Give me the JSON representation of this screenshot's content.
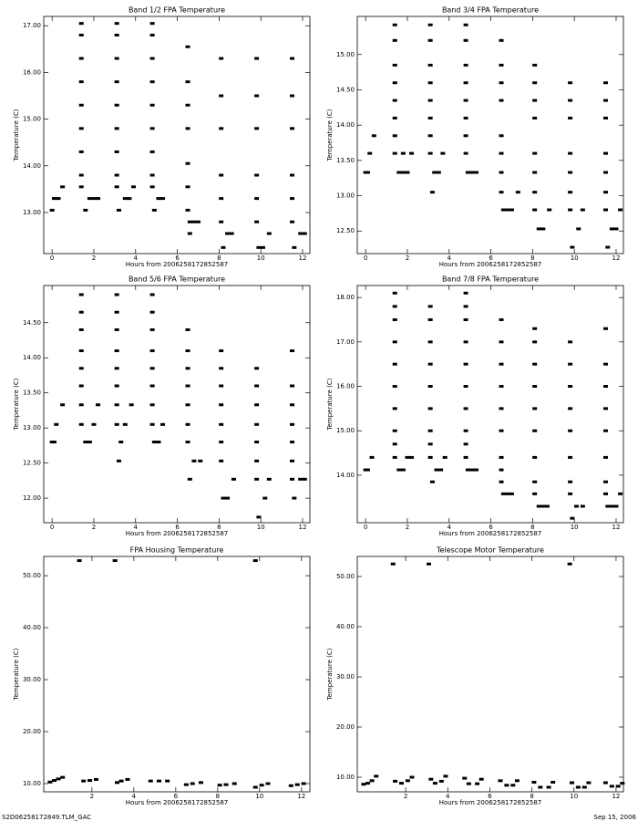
{
  "chart_data": [
    {
      "type": "scatter",
      "title": "Band 1/2 FPA Temperature",
      "x_label": "Hours from 2006258172852587",
      "y_label": "Temperature (C)",
      "color": "#000000",
      "xlim": [
        -0.4,
        12.35
      ],
      "xticks": [
        0,
        2,
        4,
        6,
        8,
        10,
        12
      ],
      "ylim": [
        12.12,
        17.2
      ],
      "yticks": [
        {
          "value": 13,
          "label": "13.00"
        },
        {
          "value": 14,
          "label": "14.00"
        },
        {
          "value": 15,
          "label": "15.00"
        },
        {
          "value": 16,
          "label": "16.00"
        },
        {
          "value": 17,
          "label": "17.00"
        }
      ],
      "x": [
        0,
        0.1,
        0.3,
        0.5,
        1.4,
        1.4,
        1.4,
        1.4,
        1.4,
        1.4,
        1.4,
        1.4,
        1.4,
        1.6,
        1.8,
        2.0,
        2.2,
        3.1,
        3.1,
        3.1,
        3.1,
        3.1,
        3.1,
        3.1,
        3.1,
        3.1,
        3.2,
        3.5,
        3.7,
        3.9,
        4.8,
        4.8,
        4.8,
        4.8,
        4.8,
        4.8,
        4.8,
        4.8,
        4.8,
        4.9,
        5.1,
        5.3,
        6.5,
        6.5,
        6.5,
        6.5,
        6.5,
        6.5,
        6.5,
        6.6,
        6.8,
        7.0,
        6.6,
        8.1,
        8.1,
        8.1,
        8.1,
        8.1,
        8.1,
        8.2,
        8.4,
        8.6,
        9.8,
        9.8,
        9.8,
        9.8,
        9.8,
        9.8,
        9.9,
        10.1,
        10.4,
        11.5,
        11.5,
        11.5,
        11.5,
        11.5,
        11.5,
        11.6,
        11.9,
        12.1
      ],
      "values": [
        13.05,
        13.3,
        13.3,
        13.55,
        13.55,
        13.8,
        14.3,
        14.8,
        15.3,
        15.8,
        16.3,
        16.8,
        17.05,
        13.05,
        13.3,
        13.3,
        13.3,
        13.55,
        13.8,
        14.3,
        14.8,
        15.3,
        15.8,
        16.3,
        16.8,
        17.05,
        13.05,
        13.3,
        13.3,
        13.55,
        13.55,
        13.8,
        14.3,
        14.8,
        15.3,
        15.8,
        16.3,
        16.8,
        17.05,
        13.05,
        13.3,
        13.3,
        13.05,
        13.55,
        14.05,
        14.8,
        15.3,
        15.8,
        16.55,
        12.8,
        12.8,
        12.8,
        12.55,
        12.8,
        13.3,
        13.8,
        14.8,
        15.5,
        16.3,
        12.25,
        12.55,
        12.55,
        12.8,
        13.3,
        13.8,
        14.8,
        15.5,
        16.3,
        12.25,
        12.25,
        12.55,
        12.8,
        13.3,
        13.8,
        14.8,
        15.5,
        16.3,
        12.25,
        12.55,
        12.55
      ]
    },
    {
      "type": "scatter",
      "title": "Band 3/4 FPA Temperature",
      "x_label": "Hours from 2006258172852587",
      "y_label": "Temperature (C)",
      "color": "#000000",
      "xlim": [
        -0.4,
        12.35
      ],
      "xticks": [
        0,
        2,
        4,
        6,
        8,
        10,
        12
      ],
      "ylim": [
        12.18,
        15.54
      ],
      "yticks": [
        {
          "value": 12.5,
          "label": "12.50"
        },
        {
          "value": 13,
          "label": "13.00"
        },
        {
          "value": 13.5,
          "label": "13.50"
        },
        {
          "value": 14,
          "label": "14.00"
        },
        {
          "value": 14.5,
          "label": "14.50"
        },
        {
          "value": 15,
          "label": "15.00"
        }
      ],
      "x": [
        0,
        0.1,
        0.2,
        0.4,
        1.4,
        1.4,
        1.4,
        1.4,
        1.4,
        1.4,
        1.4,
        1.4,
        1.6,
        1.8,
        2.0,
        2.2,
        1.8,
        3.1,
        3.1,
        3.1,
        3.1,
        3.1,
        3.1,
        3.1,
        3.1,
        3.2,
        3.3,
        3.5,
        3.7,
        4.8,
        4.8,
        4.8,
        4.8,
        4.8,
        4.8,
        4.8,
        4.8,
        4.9,
        5.1,
        5.3,
        6.5,
        6.5,
        6.5,
        6.5,
        6.5,
        6.5,
        6.5,
        6.5,
        6.6,
        6.8,
        7.0,
        7.3,
        8.1,
        8.1,
        8.1,
        8.1,
        8.1,
        8.1,
        8.1,
        8.1,
        8.3,
        8.5,
        8.8,
        9.8,
        9.8,
        9.8,
        9.8,
        9.8,
        9.8,
        9.8,
        9.9,
        10.2,
        10.4,
        11.5,
        11.5,
        11.5,
        11.5,
        11.5,
        11.5,
        11.5,
        11.6,
        11.8,
        12.0,
        12.2
      ],
      "values": [
        13.33,
        13.33,
        13.6,
        13.85,
        13.6,
        13.85,
        14.1,
        14.35,
        14.6,
        14.85,
        15.2,
        15.42,
        13.33,
        13.33,
        13.33,
        13.6,
        13.6,
        13.6,
        13.85,
        14.1,
        14.35,
        14.6,
        14.85,
        15.2,
        15.42,
        13.05,
        13.33,
        13.33,
        13.6,
        13.6,
        13.85,
        14.1,
        14.35,
        14.6,
        14.85,
        15.2,
        15.42,
        13.33,
        13.33,
        13.33,
        13.05,
        13.33,
        13.6,
        13.85,
        14.35,
        14.6,
        14.85,
        15.2,
        12.8,
        12.8,
        12.8,
        13.05,
        12.8,
        13.05,
        13.33,
        13.6,
        14.1,
        14.35,
        14.6,
        14.85,
        12.53,
        12.53,
        12.8,
        12.8,
        13.05,
        13.33,
        13.6,
        14.1,
        14.35,
        14.6,
        12.27,
        12.53,
        12.8,
        12.8,
        13.05,
        13.33,
        13.6,
        14.1,
        14.35,
        14.6,
        12.27,
        12.53,
        12.53,
        12.8
      ]
    },
    {
      "type": "scatter",
      "title": "Band 5/6 FPA Temperature",
      "x_label": "Hours from 2006258172852587",
      "y_label": "Temperature (C)",
      "color": "#000000",
      "xlim": [
        -0.4,
        12.35
      ],
      "xticks": [
        0,
        2,
        4,
        6,
        8,
        10,
        12
      ],
      "ylim": [
        11.65,
        15.03
      ],
      "yticks": [
        {
          "value": 12,
          "label": "12.00"
        },
        {
          "value": 12.5,
          "label": "12.50"
        },
        {
          "value": 13,
          "label": "13.00"
        },
        {
          "value": 13.5,
          "label": "13.50"
        },
        {
          "value": 14,
          "label": "14.00"
        },
        {
          "value": 14.5,
          "label": "14.50"
        }
      ],
      "x": [
        0,
        0.1,
        0.2,
        0.5,
        1.4,
        1.4,
        1.4,
        1.4,
        1.4,
        1.4,
        1.4,
        1.4,
        1.6,
        1.8,
        2.0,
        2.2,
        3.1,
        3.1,
        3.1,
        3.1,
        3.1,
        3.1,
        3.1,
        3.1,
        3.2,
        3.3,
        3.5,
        3.8,
        4.8,
        4.8,
        4.8,
        4.8,
        4.8,
        4.8,
        4.8,
        4.8,
        4.9,
        5.1,
        5.3,
        6.5,
        6.5,
        6.5,
        6.5,
        6.5,
        6.5,
        6.5,
        6.6,
        6.8,
        7.1,
        8.1,
        8.1,
        8.1,
        8.1,
        8.1,
        8.1,
        8.1,
        8.2,
        8.4,
        8.7,
        9.8,
        9.8,
        9.8,
        9.8,
        9.8,
        9.8,
        9.8,
        9.9,
        10.2,
        10.4,
        11.5,
        11.5,
        11.5,
        11.5,
        11.5,
        11.5,
        11.5,
        11.6,
        11.9,
        12.1
      ],
      "values": [
        12.8,
        12.8,
        13.05,
        13.33,
        13.05,
        13.33,
        13.6,
        13.85,
        14.1,
        14.4,
        14.65,
        14.9,
        12.8,
        12.8,
        13.05,
        13.33,
        13.05,
        13.33,
        13.6,
        13.85,
        14.1,
        14.4,
        14.65,
        14.9,
        12.53,
        12.8,
        13.05,
        13.33,
        13.05,
        13.33,
        13.6,
        13.85,
        14.1,
        14.4,
        14.65,
        14.9,
        12.8,
        12.8,
        13.05,
        12.8,
        13.05,
        13.33,
        13.6,
        13.85,
        14.1,
        14.4,
        12.27,
        12.53,
        12.53,
        12.53,
        12.8,
        13.05,
        13.33,
        13.6,
        13.85,
        14.1,
        12.0,
        12.0,
        12.27,
        12.27,
        12.53,
        12.8,
        13.05,
        13.33,
        13.6,
        13.85,
        11.73,
        12.0,
        12.27,
        12.27,
        12.53,
        12.8,
        13.05,
        13.33,
        13.6,
        14.1,
        12.0,
        12.27,
        12.27
      ]
    },
    {
      "type": "scatter",
      "title": "Band 7/8 FPA Temperature",
      "x_label": "Hours from 2006258172852587",
      "y_label": "Temperature (C)",
      "color": "#000000",
      "xlim": [
        -0.4,
        12.35
      ],
      "xticks": [
        0,
        2,
        4,
        6,
        8,
        10,
        12
      ],
      "ylim": [
        12.93,
        18.27
      ],
      "yticks": [
        {
          "value": 14,
          "label": "14.00"
        },
        {
          "value": 15,
          "label": "15.00"
        },
        {
          "value": 16,
          "label": "16.00"
        },
        {
          "value": 17,
          "label": "17.00"
        },
        {
          "value": 18,
          "label": "18.00"
        }
      ],
      "x": [
        0,
        0.1,
        0.3,
        1.4,
        1.4,
        1.4,
        1.4,
        1.4,
        1.4,
        1.4,
        1.4,
        1.4,
        1.4,
        1.6,
        1.8,
        2.0,
        2.2,
        3.1,
        3.1,
        3.1,
        3.1,
        3.1,
        3.1,
        3.1,
        3.1,
        3.1,
        3.2,
        3.4,
        3.6,
        3.8,
        4.8,
        4.8,
        4.8,
        4.8,
        4.8,
        4.8,
        4.8,
        4.8,
        4.8,
        4.8,
        4.9,
        5.1,
        5.3,
        6.5,
        6.5,
        6.5,
        6.5,
        6.5,
        6.5,
        6.5,
        6.5,
        6.5,
        6.6,
        6.8,
        7.0,
        8.1,
        8.1,
        8.1,
        8.1,
        8.1,
        8.1,
        8.1,
        8.1,
        8.1,
        8.3,
        8.5,
        8.7,
        9.8,
        9.8,
        9.8,
        9.8,
        9.8,
        9.8,
        9.8,
        9.8,
        9.9,
        10.1,
        10.4,
        11.5,
        11.5,
        11.5,
        11.5,
        11.5,
        11.5,
        11.5,
        11.5,
        11.6,
        11.8,
        12.0,
        12.2
      ],
      "values": [
        14.12,
        14.12,
        14.4,
        14.4,
        14.7,
        15.0,
        15.5,
        16.0,
        16.5,
        17.0,
        17.5,
        17.8,
        18.1,
        14.12,
        14.12,
        14.4,
        14.4,
        14.4,
        14.7,
        15.0,
        15.5,
        16.0,
        16.5,
        17.0,
        17.5,
        17.8,
        13.85,
        14.12,
        14.12,
        14.4,
        14.4,
        14.7,
        15.0,
        15.5,
        16.0,
        16.5,
        17.0,
        17.5,
        17.8,
        18.1,
        14.12,
        14.12,
        14.12,
        13.85,
        14.12,
        14.4,
        15.0,
        15.5,
        16.0,
        16.5,
        17.0,
        17.5,
        13.58,
        13.58,
        13.58,
        13.58,
        13.85,
        14.4,
        15.0,
        15.5,
        16.0,
        16.5,
        17.0,
        17.3,
        13.3,
        13.3,
        13.3,
        13.58,
        13.85,
        14.4,
        15.0,
        15.5,
        16.0,
        16.5,
        17.0,
        13.03,
        13.3,
        13.3,
        13.58,
        13.85,
        14.4,
        15.0,
        15.5,
        16.0,
        16.5,
        17.3,
        13.3,
        13.3,
        13.3,
        13.58
      ]
    },
    {
      "type": "scatter",
      "title": "FPA Housing Temperature",
      "x_label": "Hours from 2006258172852587",
      "y_label": "Temperature (C)",
      "color": "#000000",
      "xlim": [
        -0.3,
        12.4
      ],
      "xticks": [
        2,
        4,
        6,
        8,
        10,
        12
      ],
      "ylim": [
        8.42,
        53.7
      ],
      "yticks": [
        {
          "value": 10,
          "label": "10.00"
        },
        {
          "value": 20,
          "label": "20.00"
        },
        {
          "value": 30,
          "label": "30.00"
        },
        {
          "value": 40,
          "label": "40.00"
        },
        {
          "value": 50,
          "label": "50.00"
        }
      ],
      "x": [
        0,
        0.2,
        0.4,
        0.6,
        1.4,
        1.6,
        1.9,
        2.2,
        3.1,
        3.2,
        3.4,
        3.7,
        4.8,
        5.2,
        5.6,
        6.5,
        6.8,
        7.2,
        8.1,
        8.4,
        8.8,
        9.8,
        9.8,
        10.1,
        10.4,
        11.5,
        11.8,
        12.1
      ],
      "values": [
        10.3,
        10.6,
        10.9,
        11.2,
        52.9,
        10.5,
        10.6,
        10.8,
        52.9,
        10.2,
        10.5,
        10.8,
        10.5,
        10.5,
        10.5,
        9.8,
        10.0,
        10.2,
        9.7,
        9.8,
        10.0,
        52.9,
        9.3,
        9.7,
        10.0,
        9.6,
        9.8,
        10.0
      ]
    },
    {
      "type": "scatter",
      "title": "Telescope Motor Temperature",
      "x_label": "Hours from 2006258172852587",
      "y_label": "Temperature (C)",
      "color": "#000000",
      "xlim": [
        -0.3,
        12.35
      ],
      "xticks": [
        2,
        4,
        6,
        8,
        10,
        12
      ],
      "ylim": [
        7.09,
        54
      ],
      "yticks": [
        {
          "value": 10,
          "label": "10.00"
        },
        {
          "value": 20,
          "label": "20.00"
        },
        {
          "value": 30,
          "label": "30.00"
        },
        {
          "value": 40,
          "label": "40.00"
        },
        {
          "value": 50,
          "label": "50.00"
        }
      ],
      "x": [
        0,
        0.2,
        0.4,
        0.6,
        1.4,
        1.5,
        1.8,
        2.1,
        2.3,
        3.1,
        3.2,
        3.4,
        3.7,
        3.9,
        4.8,
        5.0,
        5.4,
        5.6,
        6.5,
        6.8,
        7.1,
        7.3,
        8.1,
        8.4,
        8.8,
        9.0,
        9.8,
        9.9,
        10.2,
        10.5,
        10.7,
        11.5,
        11.8,
        12.1,
        12.3
      ],
      "values": [
        8.6,
        8.8,
        9.3,
        10.2,
        52.5,
        9.2,
        8.8,
        9.3,
        10.0,
        52.5,
        9.6,
        8.8,
        9.2,
        10.2,
        9.8,
        8.7,
        8.7,
        9.6,
        9.3,
        8.4,
        8.4,
        9.3,
        9.0,
        8.0,
        8.0,
        9.0,
        52.5,
        8.9,
        8.0,
        8.0,
        8.9,
        8.9,
        8.2,
        8.2,
        8.8
      ]
    }
  ],
  "footer": {
    "left": "S2D06258172849.TLM_GAC",
    "right": "Sep 15, 2006"
  }
}
